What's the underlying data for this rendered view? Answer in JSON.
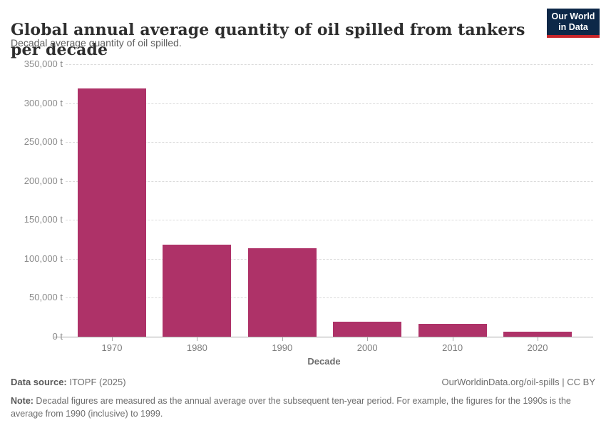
{
  "header": {
    "logo": {
      "line1": "Our World",
      "line2": "in Data",
      "bg_color": "#0d2848",
      "accent_color": "#c7252a"
    }
  },
  "chart_data": {
    "type": "bar",
    "title": "Global annual average quantity of oil spilled from tankers per decade",
    "subtitle": "Decadal average quantity of oil spilled.",
    "categories": [
      "1970",
      "1980",
      "1990",
      "2000",
      "2010",
      "2020"
    ],
    "values": [
      319000,
      117800,
      113400,
      19600,
      16400,
      6800
    ],
    "unit": "t",
    "xlabel": "Decade",
    "ylabel": "",
    "ylim": [
      0,
      350000
    ],
    "ytick_interval": 50000,
    "yticks": [
      "0 t",
      "50,000 t",
      "100,000 t",
      "150,000 t",
      "200,000 t",
      "250,000 t",
      "300,000 t",
      "350,000 t"
    ],
    "grid": "horizontal-dashed",
    "legend": "none",
    "bar_color": "#ae3268"
  },
  "footer": {
    "datasource_label": "Data source:",
    "datasource_value": " ITOPF (2025)",
    "rights": "OurWorldinData.org/oil-spills | CC BY",
    "note_label": "Note:",
    "note_text": " Decadal figures are measured as the annual average over the subsequent ten-year period. For example, the figures for the 1990s is the average from 1990 (inclusive) to 1999."
  }
}
